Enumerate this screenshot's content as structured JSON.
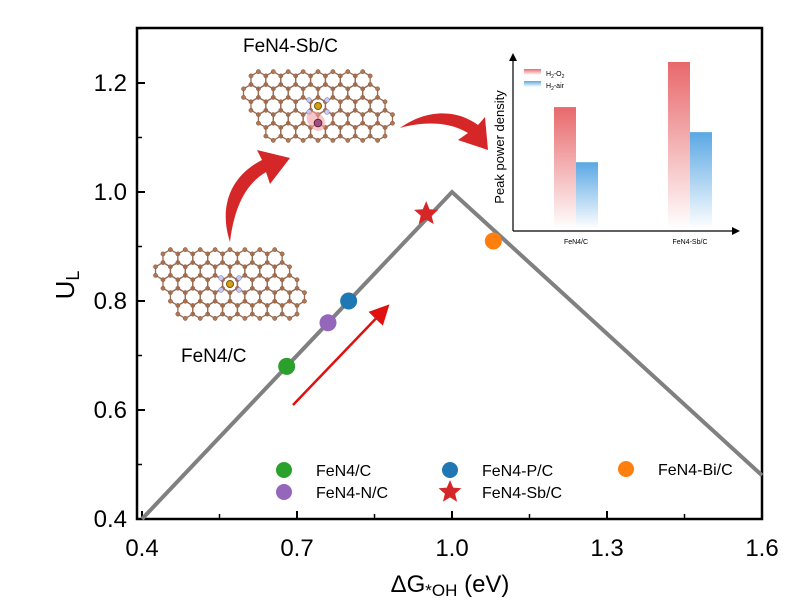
{
  "chart_data": {
    "type": "scatter",
    "xlabel_main": "ΔG",
    "xlabel_sub": "*OH",
    "xlabel_unit": " (eV)",
    "ylabel_main": "U",
    "ylabel_sub": "L",
    "xlim": [
      0.4,
      1.6
    ],
    "ylim": [
      0.4,
      1.3
    ],
    "xticks": [
      "0.4",
      "0.7",
      "1.0",
      "1.3",
      "1.6"
    ],
    "yticks": [
      "0.4",
      "0.6",
      "0.8",
      "1.0",
      "1.2"
    ],
    "grid": false,
    "volcano_line": {
      "x": [
        0.4,
        1.0,
        1.6
      ],
      "y": [
        0.4,
        1.0,
        0.48
      ],
      "color": "#808080"
    },
    "series": [
      {
        "name": "FeN4/C",
        "x": 0.68,
        "y": 0.68,
        "color": "#2ca02c",
        "marker": "circle"
      },
      {
        "name": "FeN4-N/C",
        "x": 0.76,
        "y": 0.76,
        "color": "#9467bd",
        "marker": "circle"
      },
      {
        "name": "FeN4-P/C",
        "x": 0.8,
        "y": 0.8,
        "color": "#1f77b4",
        "marker": "circle"
      },
      {
        "name": "FeN4-Sb/C",
        "x": 0.95,
        "y": 0.96,
        "color": "#d62728",
        "marker": "star"
      },
      {
        "name": "FeN4-Bi/C",
        "x": 1.08,
        "y": 0.91,
        "color": "#ff7f0e",
        "marker": "circle"
      }
    ],
    "legend_placement": "bottom",
    "annotations": {
      "structure_top": "FeN4-Sb/C",
      "structure_bottom": "FeN4/C"
    },
    "inset": {
      "type": "bar",
      "ylabel": "Peak power density",
      "categories": [
        "FeN4/C",
        "FeN4-Sb/C"
      ],
      "series": [
        {
          "name": "H2-O2",
          "name_parts": [
            "H",
            "2",
            "-O",
            "2"
          ],
          "values": [
            0.73,
            1.0
          ],
          "color": "#e8686b"
        },
        {
          "name": "H2-air",
          "name_parts": [
            "H",
            "2",
            "-air"
          ],
          "values": [
            0.4,
            0.58
          ],
          "color": "#5aa8e4"
        }
      ]
    }
  }
}
